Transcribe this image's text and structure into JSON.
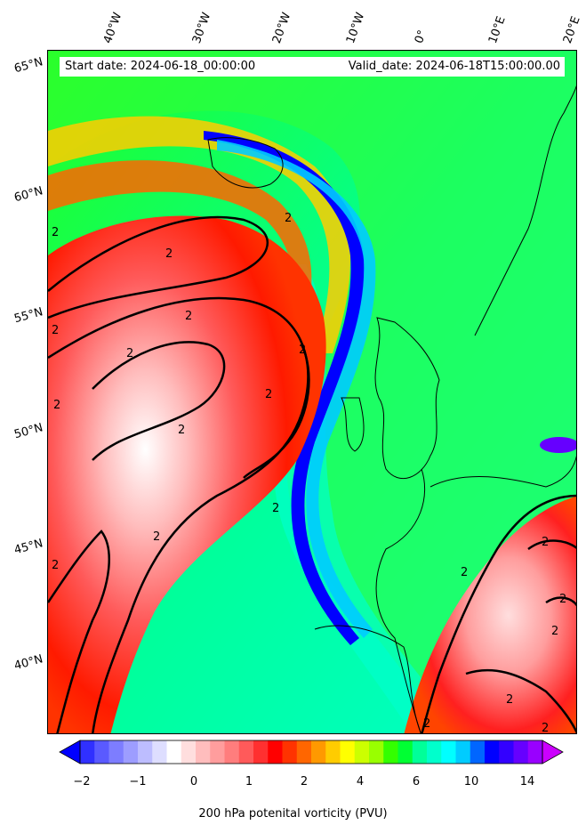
{
  "header": {
    "start_date": "Start date: 2024-06-18_00:00:00",
    "valid_date": "Valid_date: 2024-06-18T15:00:00.00"
  },
  "longitude_labels": [
    "40°W",
    "30°W",
    "20°W",
    "10°W",
    "0°",
    "10°E",
    "20°E"
  ],
  "latitude_labels": [
    "65°N",
    "60°N",
    "55°N",
    "50°N",
    "45°N",
    "40°N"
  ],
  "colorbar": {
    "label": "200 hPa potenital vorticity (PVU)",
    "ticks": [
      "−2",
      "−1",
      "0",
      "1",
      "2",
      "4",
      "6",
      "10",
      "14"
    ],
    "colors": [
      "#0000ff",
      "#3030ff",
      "#5a5aff",
      "#7d7dff",
      "#9d9dff",
      "#bdbdff",
      "#dedeff",
      "#ffffff",
      "#ffdede",
      "#ffbdbd",
      "#ff9d9d",
      "#ff7d7d",
      "#ff5a5a",
      "#ff3030",
      "#ff0000",
      "#ff3300",
      "#ff6600",
      "#ff9900",
      "#ffcc00",
      "#ffff00",
      "#ccff00",
      "#99ff00",
      "#33ff00",
      "#00ff33",
      "#00ff99",
      "#00ffcc",
      "#00ffff",
      "#00ccff",
      "#0066ff",
      "#0000ff",
      "#3300ff",
      "#6600ff",
      "#9900ff",
      "#cc00ff"
    ]
  },
  "contour_labels": [
    "2",
    "2",
    "2",
    "2",
    "2",
    "2",
    "2",
    "2",
    "2",
    "2",
    "2",
    "2",
    "2",
    "2",
    "2",
    "2",
    "2",
    "2",
    "2",
    "2"
  ]
}
